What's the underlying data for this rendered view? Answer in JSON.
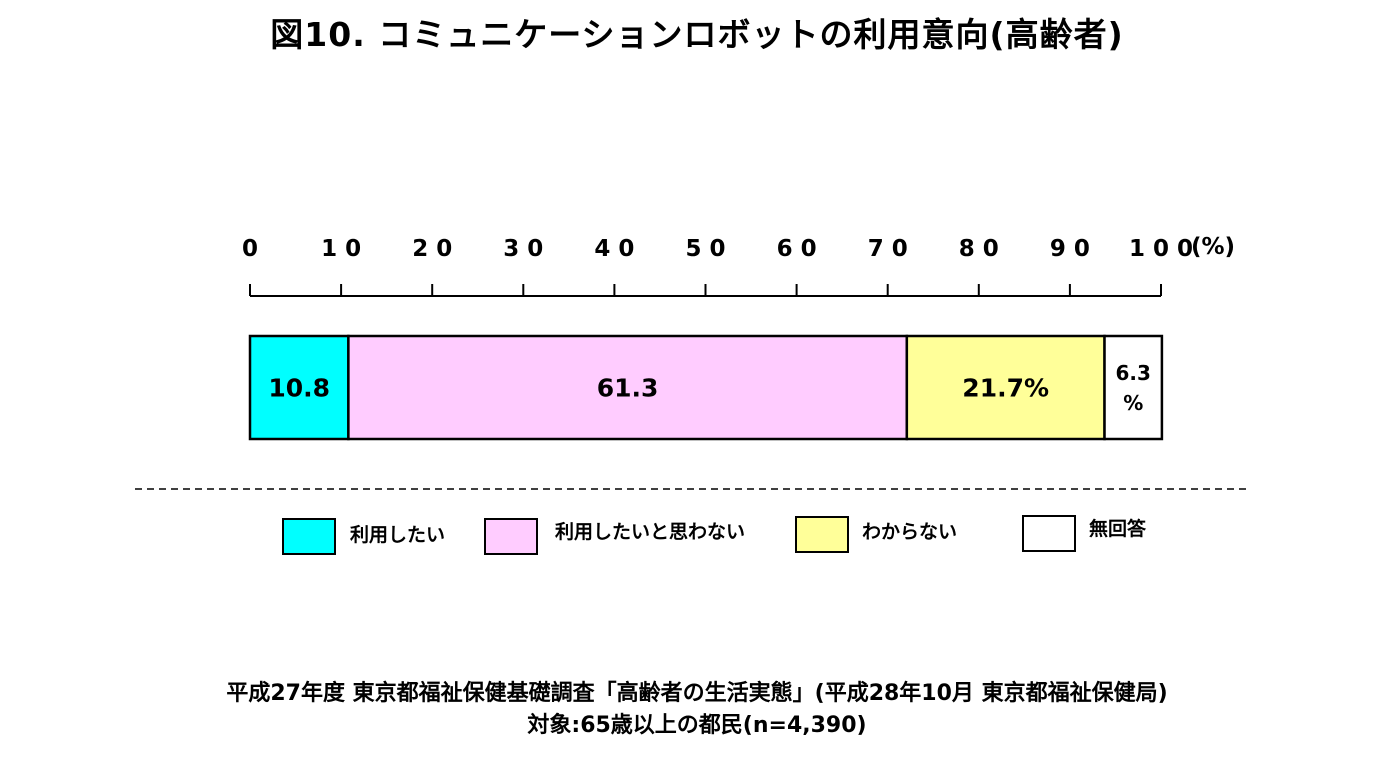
{
  "title": "図10. コミュニケーションロボットの利用意向(高齢者)",
  "chart_data": {
    "type": "bar",
    "orientation": "horizontal-stacked-100",
    "xlim": [
      0,
      100
    ],
    "ticks": [
      0,
      10,
      20,
      30,
      40,
      50,
      60,
      70,
      80,
      90,
      100
    ],
    "tick_labels": [
      "0",
      "1 0",
      "2 0",
      "3 0",
      "4 0",
      "5 0",
      "6 0",
      "7 0",
      "8 0",
      "9 0",
      "1 0 0"
    ],
    "unit_label": "(%)",
    "series": [
      {
        "name": "利用したい",
        "value": 10.8,
        "label": "10.8",
        "color": "#00FFFF"
      },
      {
        "name": "利用したいと思わない",
        "value": 61.3,
        "label": "61.3",
        "color": "#FFCCFF"
      },
      {
        "name": "わからない",
        "value": 21.7,
        "label": "21.7%",
        "color": "#FFFF99"
      },
      {
        "name": "無回答",
        "value": 6.3,
        "label_lines": [
          "6.3",
          "%"
        ],
        "color": "#FFFFFF"
      }
    ],
    "legend": "bottom",
    "grid": false
  },
  "footer": {
    "line1": "平成27年度 東京都福祉保健基礎調査「高齢者の生活実態」(平成28年10月 東京都福祉保健局)",
    "line2": "対象:65歳以上の都民(n=4,390)"
  }
}
